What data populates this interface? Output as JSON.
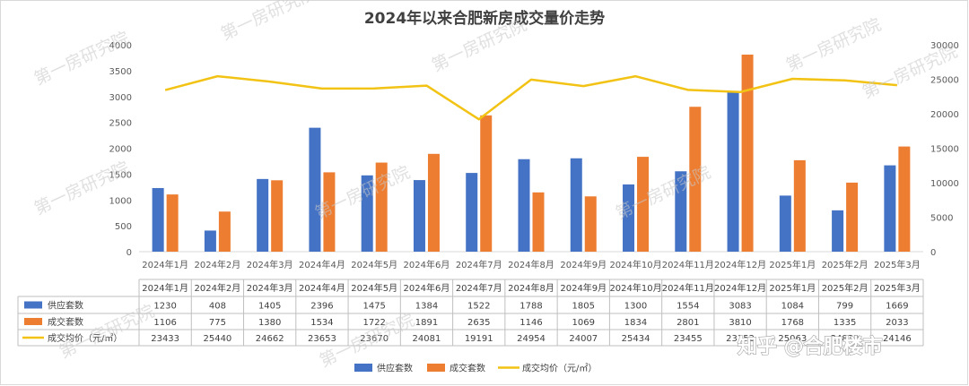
{
  "chart_data": {
    "type": "bar",
    "title": "2024年以来合肥新房成交量价走势",
    "categories": [
      "2024年1月",
      "2024年2月",
      "2024年3月",
      "2024年4月",
      "2024年5月",
      "2024年6月",
      "2024年7月",
      "2024年8月",
      "2024年9月",
      "2024年10月",
      "2024年11月",
      "2024年12月",
      "2025年1月",
      "2025年2月",
      "2025年3月"
    ],
    "series": [
      {
        "name": "供应套数",
        "type": "bar",
        "axis": "left",
        "color": "#4472c4",
        "values": [
          1230,
          408,
          1405,
          2396,
          1475,
          1384,
          1522,
          1788,
          1805,
          1300,
          1554,
          3083,
          1084,
          799,
          1669
        ]
      },
      {
        "name": "成交套数",
        "type": "bar",
        "axis": "left",
        "color": "#ed7d31",
        "values": [
          1106,
          775,
          1380,
          1534,
          1722,
          1891,
          2635,
          1146,
          1069,
          1834,
          2801,
          3810,
          1768,
          1335,
          2033
        ]
      },
      {
        "name": "成交均价（元/㎡）",
        "type": "line",
        "axis": "right",
        "color": "#f2c314",
        "values": [
          23433,
          25440,
          24662,
          23653,
          23670,
          24081,
          19191,
          24954,
          24007,
          25434,
          23455,
          23152,
          25063,
          24832,
          24146
        ]
      }
    ],
    "left_axis": {
      "min": 0,
      "max": 4000,
      "ticks": [
        0,
        500,
        1000,
        1500,
        2000,
        2500,
        3000,
        3500,
        4000
      ]
    },
    "right_axis": {
      "min": 0,
      "max": 30000,
      "ticks": [
        0,
        5000,
        10000,
        15000,
        20000,
        25000,
        30000
      ]
    },
    "legend_position": "bottom",
    "data_table": true,
    "grid": false
  },
  "watermark": "第一房研究院",
  "credit": "知乎 @合肥楼市"
}
